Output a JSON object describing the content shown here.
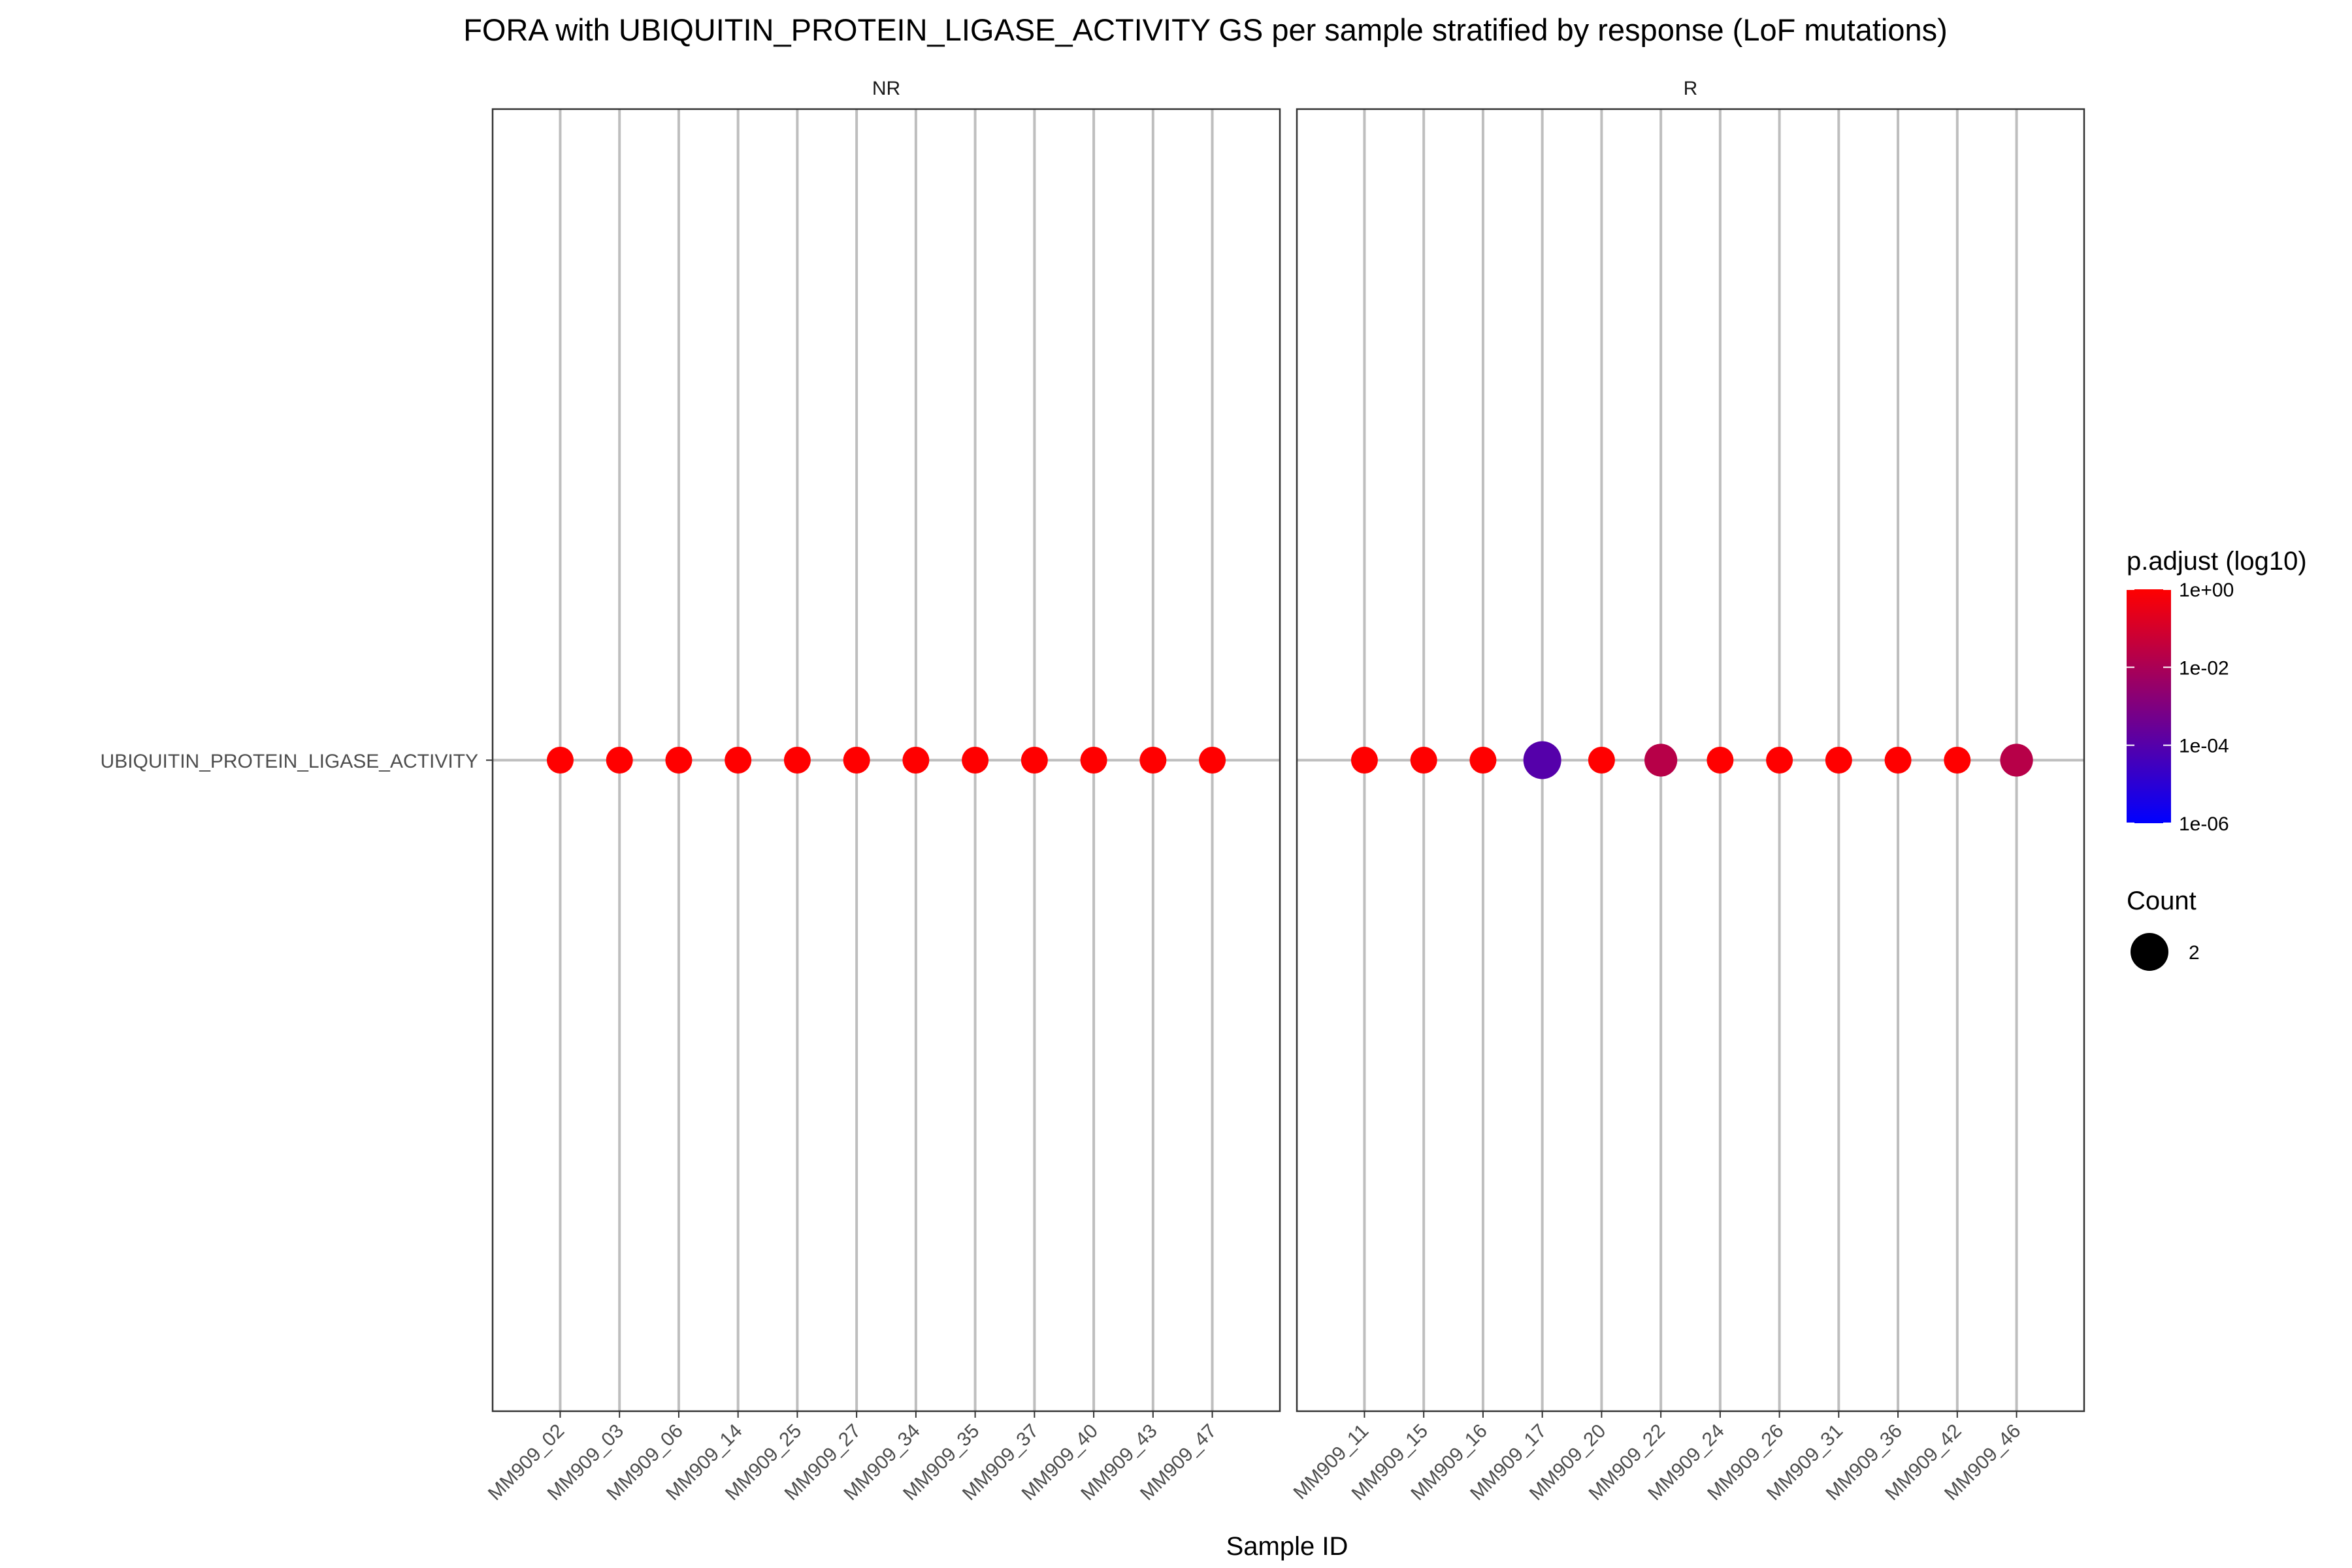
{
  "chart_data": {
    "type": "scatter",
    "title": "FORA with UBIQUITIN_PROTEIN_LIGASE_ACTIVITY GS per sample stratified by response (LoF mutations)",
    "xlabel": "Sample ID",
    "ylabel": "",
    "y_categories": [
      "UBIQUITIN_PROTEIN_LIGASE_ACTIVITY"
    ],
    "facets": [
      {
        "label": "NR",
        "samples": [
          "MM909_02",
          "MM909_03",
          "MM909_06",
          "MM909_14",
          "MM909_25",
          "MM909_27",
          "MM909_34",
          "MM909_35",
          "MM909_37",
          "MM909_40",
          "MM909_43",
          "MM909_47"
        ],
        "points": [
          {
            "x": "MM909_02",
            "y": "UBIQUITIN_PROTEIN_LIGASE_ACTIVITY",
            "p_adjust": 1,
            "count": 1
          },
          {
            "x": "MM909_03",
            "y": "UBIQUITIN_PROTEIN_LIGASE_ACTIVITY",
            "p_adjust": 1,
            "count": 1
          },
          {
            "x": "MM909_06",
            "y": "UBIQUITIN_PROTEIN_LIGASE_ACTIVITY",
            "p_adjust": 1,
            "count": 1
          },
          {
            "x": "MM909_14",
            "y": "UBIQUITIN_PROTEIN_LIGASE_ACTIVITY",
            "p_adjust": 1,
            "count": 1
          },
          {
            "x": "MM909_25",
            "y": "UBIQUITIN_PROTEIN_LIGASE_ACTIVITY",
            "p_adjust": 1,
            "count": 1
          },
          {
            "x": "MM909_27",
            "y": "UBIQUITIN_PROTEIN_LIGASE_ACTIVITY",
            "p_adjust": 1,
            "count": 1
          },
          {
            "x": "MM909_34",
            "y": "UBIQUITIN_PROTEIN_LIGASE_ACTIVITY",
            "p_adjust": 1,
            "count": 1
          },
          {
            "x": "MM909_35",
            "y": "UBIQUITIN_PROTEIN_LIGASE_ACTIVITY",
            "p_adjust": 1,
            "count": 1
          },
          {
            "x": "MM909_37",
            "y": "UBIQUITIN_PROTEIN_LIGASE_ACTIVITY",
            "p_adjust": 1,
            "count": 1
          },
          {
            "x": "MM909_40",
            "y": "UBIQUITIN_PROTEIN_LIGASE_ACTIVITY",
            "p_adjust": 1,
            "count": 1
          },
          {
            "x": "MM909_43",
            "y": "UBIQUITIN_PROTEIN_LIGASE_ACTIVITY",
            "p_adjust": 1,
            "count": 1
          },
          {
            "x": "MM909_47",
            "y": "UBIQUITIN_PROTEIN_LIGASE_ACTIVITY",
            "p_adjust": 1,
            "count": 1
          }
        ]
      },
      {
        "label": "R",
        "samples": [
          "MM909_11",
          "MM909_15",
          "MM909_16",
          "MM909_17",
          "MM909_20",
          "MM909_22",
          "MM909_24",
          "MM909_26",
          "MM909_31",
          "MM909_36",
          "MM909_42",
          "MM909_46"
        ],
        "points": [
          {
            "x": "MM909_11",
            "y": "UBIQUITIN_PROTEIN_LIGASE_ACTIVITY",
            "p_adjust": 1,
            "count": 1
          },
          {
            "x": "MM909_15",
            "y": "UBIQUITIN_PROTEIN_LIGASE_ACTIVITY",
            "p_adjust": 1,
            "count": 1
          },
          {
            "x": "MM909_16",
            "y": "UBIQUITIN_PROTEIN_LIGASE_ACTIVITY",
            "p_adjust": 1,
            "count": 1
          },
          {
            "x": "MM909_17",
            "y": "UBIQUITIN_PROTEIN_LIGASE_ACTIVITY",
            "p_adjust": 0.0001,
            "count": 2
          },
          {
            "x": "MM909_20",
            "y": "UBIQUITIN_PROTEIN_LIGASE_ACTIVITY",
            "p_adjust": 1,
            "count": 1
          },
          {
            "x": "MM909_22",
            "y": "UBIQUITIN_PROTEIN_LIGASE_ACTIVITY",
            "p_adjust": 0.02,
            "count": 1.5
          },
          {
            "x": "MM909_24",
            "y": "UBIQUITIN_PROTEIN_LIGASE_ACTIVITY",
            "p_adjust": 1,
            "count": 1
          },
          {
            "x": "MM909_26",
            "y": "UBIQUITIN_PROTEIN_LIGASE_ACTIVITY",
            "p_adjust": 1,
            "count": 1
          },
          {
            "x": "MM909_31",
            "y": "UBIQUITIN_PROTEIN_LIGASE_ACTIVITY",
            "p_adjust": 1,
            "count": 1
          },
          {
            "x": "MM909_36",
            "y": "UBIQUITIN_PROTEIN_LIGASE_ACTIVITY",
            "p_adjust": 1,
            "count": 1
          },
          {
            "x": "MM909_42",
            "y": "UBIQUITIN_PROTEIN_LIGASE_ACTIVITY",
            "p_adjust": 1,
            "count": 1
          },
          {
            "x": "MM909_46",
            "y": "UBIQUITIN_PROTEIN_LIGASE_ACTIVITY",
            "p_adjust": 0.02,
            "count": 1.5
          }
        ]
      }
    ],
    "color_legend": {
      "title": "p.adjust (log10)",
      "scale": "log10",
      "range": [
        1e-06,
        1
      ],
      "ticks": [
        {
          "value": 1,
          "label": "1e+00"
        },
        {
          "value": 0.01,
          "label": "1e-02"
        },
        {
          "value": 0.0001,
          "label": "1e-04"
        },
        {
          "value": 1e-06,
          "label": "1e-06"
        }
      ],
      "low_color": "#0000ff",
      "high_color": "#ff0000"
    },
    "size_legend": {
      "title": "Count",
      "entries": [
        {
          "value": 2,
          "label": "2"
        }
      ]
    },
    "grid": true,
    "legend_position": "right"
  }
}
